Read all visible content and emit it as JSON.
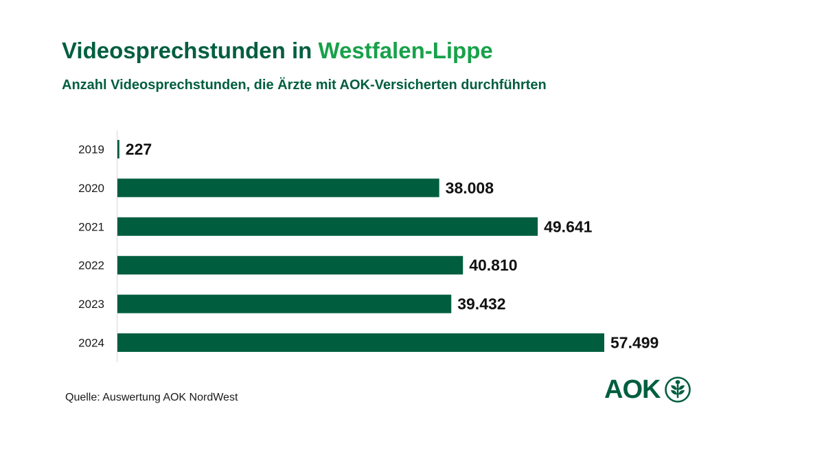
{
  "title": {
    "part1": "Videosprechstunden in ",
    "part2": "Westfalen-Lippe"
  },
  "subtitle": "Anzahl Videosprechstunden, die Ärzte mit AOK-Versicherten durchführten",
  "source": "Quelle: Auswertung AOK NordWest",
  "logo": {
    "text": "AOK",
    "icon": "aok-tree-icon"
  },
  "colors": {
    "bar": "#005e3f",
    "title_primary": "#005e3f",
    "title_accent": "#18a14a"
  },
  "chart_data": {
    "type": "bar",
    "orientation": "horizontal",
    "title": "Videosprechstunden in Westfalen-Lippe",
    "subtitle": "Anzahl Videosprechstunden, die Ärzte mit AOK-Versicherten durchführten",
    "categories": [
      "2019",
      "2020",
      "2021",
      "2022",
      "2023",
      "2024"
    ],
    "values": [
      227,
      38008,
      49641,
      40810,
      39432,
      57499
    ],
    "value_labels": [
      "227",
      "38.008",
      "49.641",
      "40.810",
      "39.432",
      "57.499"
    ],
    "xlabel": "",
    "ylabel": "",
    "xlim": [
      0,
      57499
    ],
    "grid": false,
    "legend": "none"
  }
}
